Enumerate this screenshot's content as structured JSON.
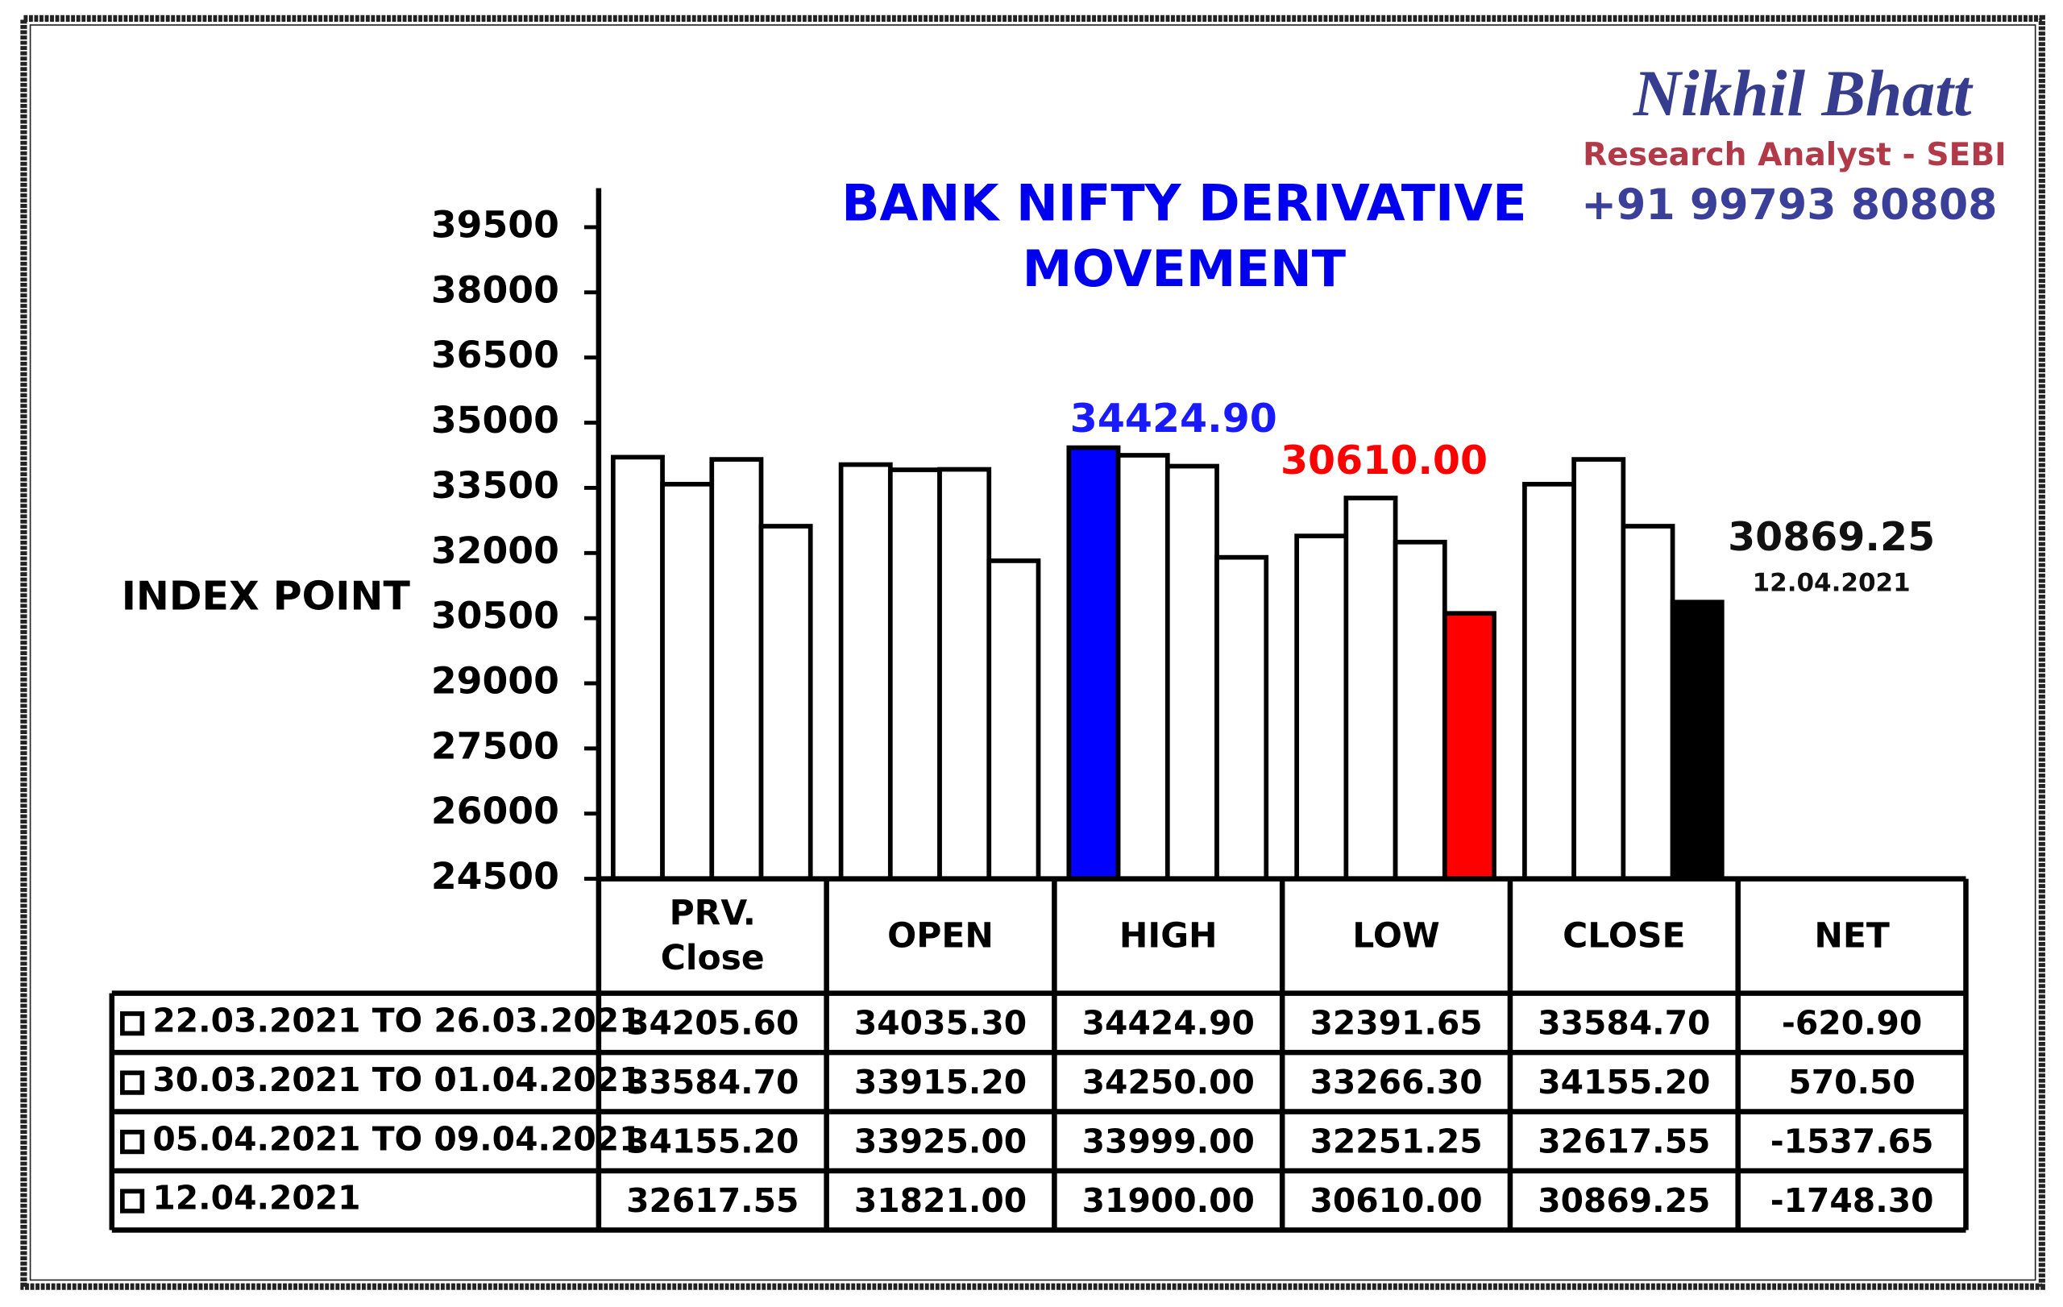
{
  "chart_data": {
    "type": "bar",
    "title": [
      "BANK NIFTY DERIVATIVE",
      "MOVEMENT"
    ],
    "ylabel": "INDEX POINT",
    "categories": [
      "PRV. Close",
      "OPEN",
      "HIGH",
      "LOW",
      "CLOSE"
    ],
    "net_label": "NET",
    "ylim": [
      24500,
      40400
    ],
    "yticks": [
      24500,
      26000,
      27500,
      29000,
      30500,
      32000,
      33500,
      35000,
      36500,
      38000,
      39500
    ],
    "series": [
      {
        "name": "22.03.2021 TO 26.03.2021",
        "colors": [
          "#ffffff",
          "#ffffff",
          "#0000ff",
          "#ffffff",
          "#ffffff"
        ],
        "values": [
          34205.6,
          34035.3,
          34424.9,
          32391.65,
          33584.7
        ],
        "value_labels": [
          "34205.60",
          "34035.30",
          "34424.90",
          "32391.65",
          "33584.70"
        ],
        "net": -620.9,
        "net_label": "-620.90"
      },
      {
        "name": "30.03.2021 TO 01.04.2021",
        "colors": [
          "#ffffff",
          "#ffffff",
          "#ffffff",
          "#ffffff",
          "#ffffff"
        ],
        "values": [
          33584.7,
          33915.2,
          34250,
          33266.3,
          34155.2
        ],
        "value_labels": [
          "33584.70",
          "33915.20",
          "34250.00",
          "33266.30",
          "34155.20"
        ],
        "net": 570.5,
        "net_label": "570.50"
      },
      {
        "name": "05.04.2021 TO 09.04.2021",
        "colors": [
          "#ffffff",
          "#ffffff",
          "#ffffff",
          "#ffffff",
          "#ffffff"
        ],
        "values": [
          34155.2,
          33925,
          33999,
          32251.25,
          32617.55
        ],
        "value_labels": [
          "34155.20",
          "33925.00",
          "33999.00",
          "32251.25",
          "32617.55"
        ],
        "net": -1537.65,
        "net_label": "-1537.65"
      },
      {
        "name": "12.04.2021",
        "colors": [
          "#ffffff",
          "#ffffff",
          "#ffffff",
          "#ff0000",
          "#000000"
        ],
        "values": [
          32617.55,
          31821,
          31900,
          30610,
          30869.25
        ],
        "value_labels": [
          "32617.55",
          "31821.00",
          "31900.00",
          "30610.00",
          "30869.25"
        ],
        "net": -1748.3,
        "net_label": "-1748.30"
      }
    ],
    "annotations": [
      {
        "text": "34424.90",
        "color": "#1a1aff"
      },
      {
        "text": "30610.00",
        "color": "#ff0000"
      },
      {
        "text": "30869.25",
        "color": "#111111"
      },
      {
        "text": "12.04.2021",
        "color": "#111111"
      }
    ]
  },
  "branding": {
    "name": "Nikhil Bhatt",
    "role": "Research Analyst - SEBI",
    "phone": "+91 99793 80808"
  }
}
